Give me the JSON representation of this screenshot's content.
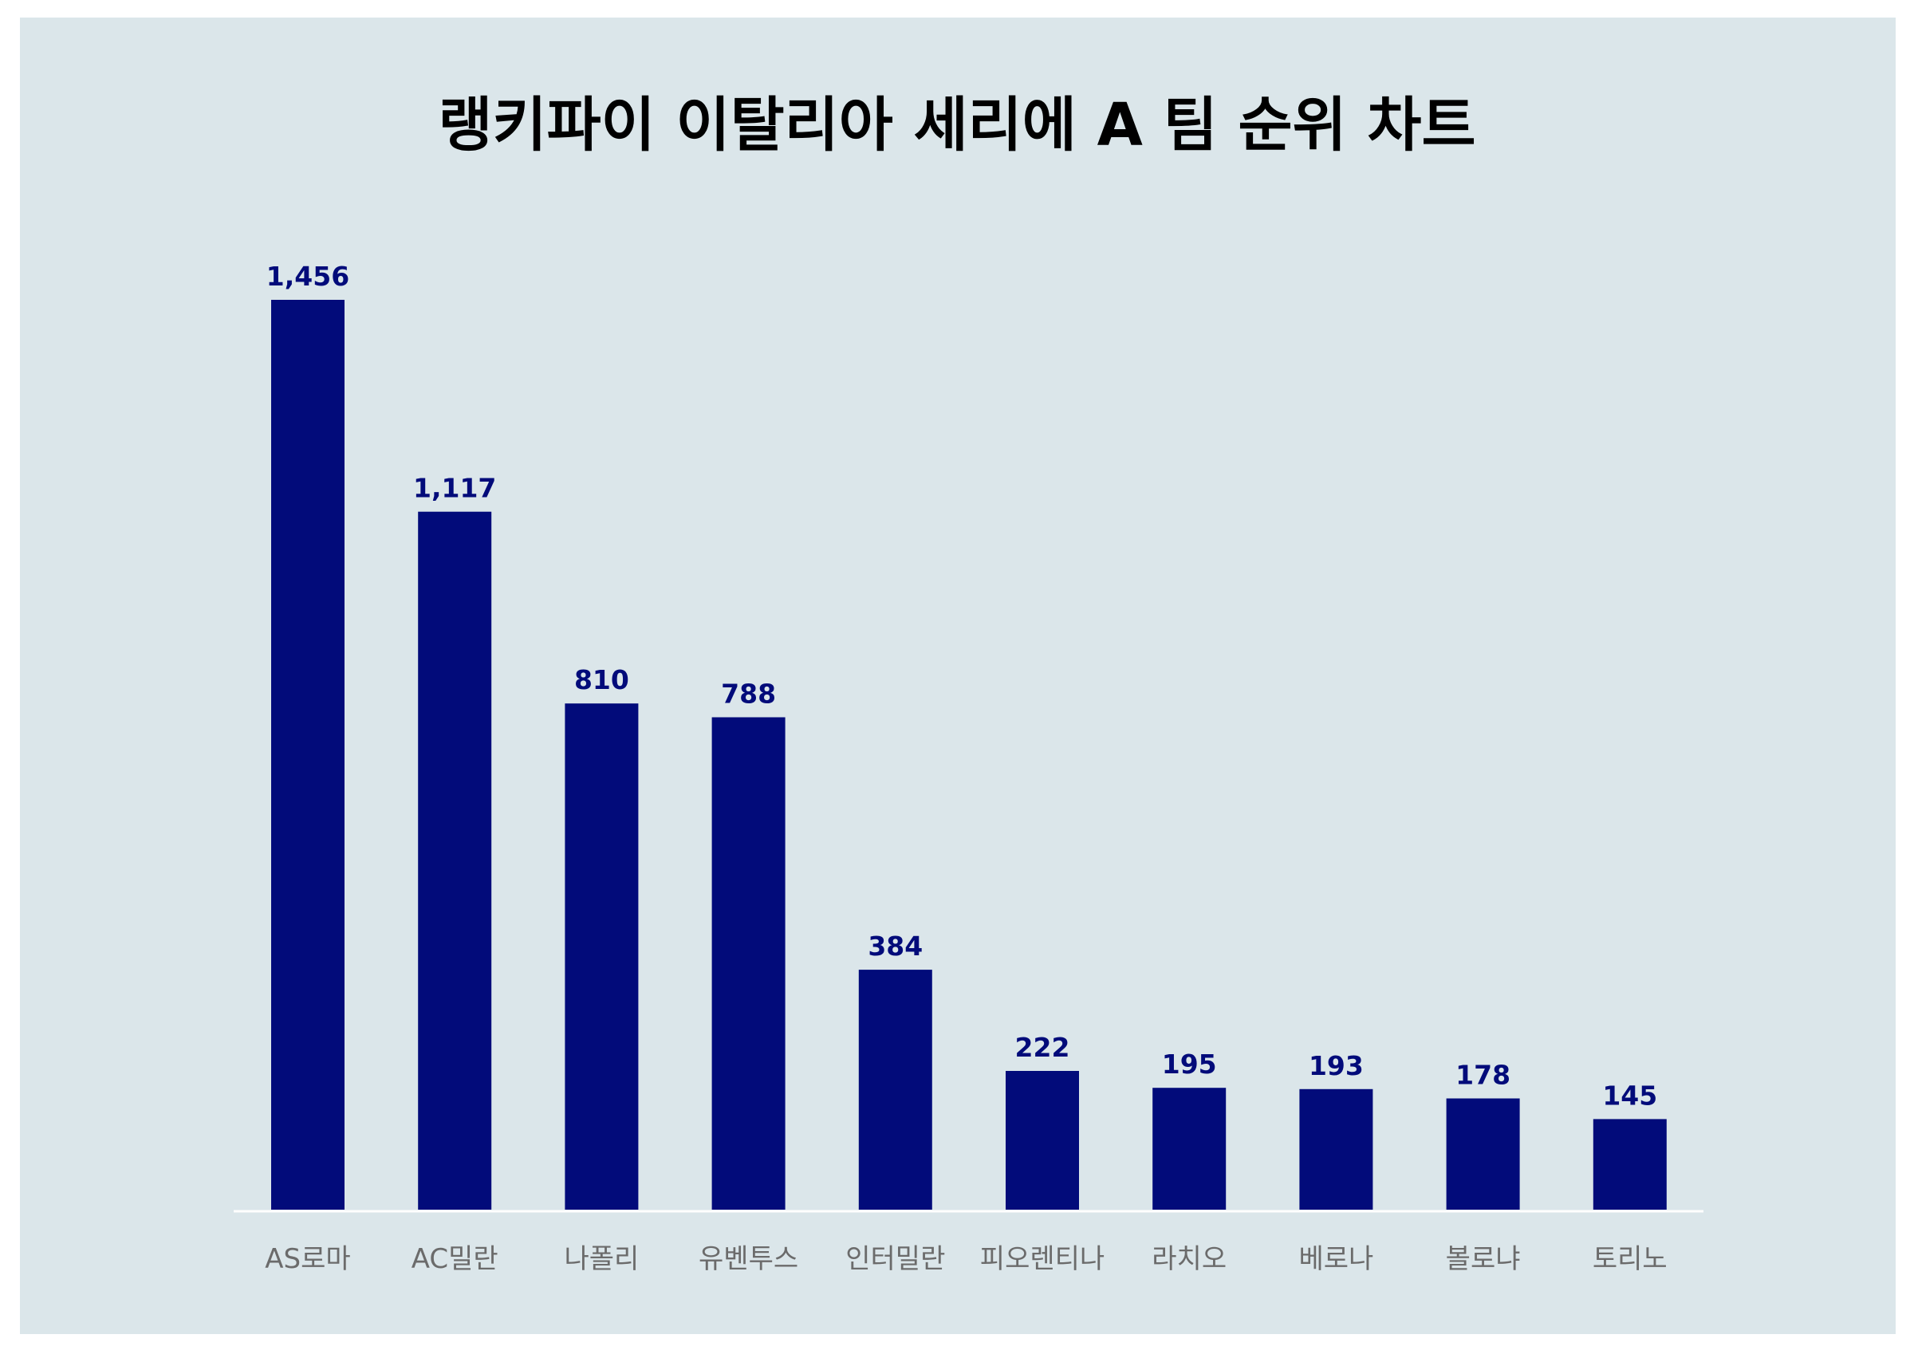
{
  "chart_data": {
    "type": "bar",
    "title": "랭키파이 이탈리아 세리에 A 팀 순위 차트",
    "categories": [
      "AS로마",
      "AC밀란",
      "나폴리",
      "유벤투스",
      "인터밀란",
      "피오렌티나",
      "라치오",
      "베로나",
      "볼로냐",
      "토리노"
    ],
    "values": [
      1456,
      1117,
      810,
      788,
      384,
      222,
      195,
      193,
      178,
      145
    ],
    "value_labels": [
      "1,456",
      "1,117",
      "810",
      "788",
      "384",
      "222",
      "195",
      "193",
      "178",
      "145"
    ],
    "xlabel": "",
    "ylabel": "",
    "ylim": [
      0,
      1456
    ],
    "grid": false,
    "legend": "none",
    "bar_color": "#020b7a",
    "background_color": "#dbe6ea"
  }
}
